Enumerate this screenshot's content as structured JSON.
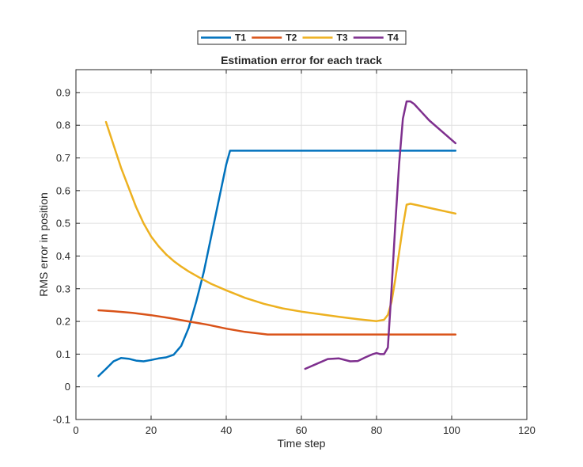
{
  "chart_data": {
    "type": "line",
    "title": "Estimation error for each track",
    "xlabel": "Time step",
    "ylabel": "RMS error in position",
    "xlim": [
      0,
      120
    ],
    "ylim": [
      -0.1,
      0.97
    ],
    "xticks": [
      0,
      20,
      40,
      60,
      80,
      100,
      120
    ],
    "yticks": [
      -0.1,
      0,
      0.1,
      0.2,
      0.3,
      0.4,
      0.5,
      0.6,
      0.7,
      0.8,
      0.9
    ],
    "xtick_labels": [
      "0",
      "20",
      "40",
      "60",
      "80",
      "100",
      "120"
    ],
    "ytick_labels": [
      "-0.1",
      "0",
      "0.1",
      "0.2",
      "0.3",
      "0.4",
      "0.5",
      "0.6",
      "0.7",
      "0.8",
      "0.9"
    ],
    "grid": true,
    "legend_position": "top-center",
    "legend_orientation": "horizontal",
    "series": [
      {
        "name": "T1",
        "color": "#0072BD",
        "x": [
          6,
          8,
          10,
          12,
          14,
          16,
          18,
          20,
          22,
          24,
          26,
          28,
          30,
          32,
          34,
          36,
          38,
          40,
          41,
          101
        ],
        "y": [
          0.033,
          0.055,
          0.078,
          0.088,
          0.086,
          0.08,
          0.078,
          0.082,
          0.087,
          0.09,
          0.098,
          0.125,
          0.18,
          0.26,
          0.35,
          0.46,
          0.57,
          0.68,
          0.722,
          0.722
        ]
      },
      {
        "name": "T2",
        "color": "#D95319",
        "x": [
          6,
          10,
          15,
          20,
          25,
          30,
          35,
          40,
          45,
          51,
          101
        ],
        "y": [
          0.234,
          0.231,
          0.226,
          0.219,
          0.21,
          0.2,
          0.19,
          0.178,
          0.168,
          0.16,
          0.16
        ]
      },
      {
        "name": "T3",
        "color": "#EDB120",
        "x": [
          8,
          10,
          12,
          14,
          16,
          18,
          20,
          22,
          24,
          26,
          28,
          30,
          33,
          36,
          40,
          45,
          50,
          55,
          60,
          65,
          70,
          75,
          80,
          82,
          83,
          84,
          85,
          86,
          87,
          88,
          89,
          91,
          95,
          101
        ],
        "y": [
          0.81,
          0.74,
          0.67,
          0.61,
          0.55,
          0.5,
          0.46,
          0.43,
          0.405,
          0.385,
          0.368,
          0.353,
          0.333,
          0.315,
          0.295,
          0.272,
          0.254,
          0.24,
          0.23,
          0.222,
          0.214,
          0.207,
          0.201,
          0.205,
          0.22,
          0.26,
          0.33,
          0.41,
          0.49,
          0.557,
          0.56,
          0.555,
          0.545,
          0.53
        ]
      },
      {
        "name": "T4",
        "color": "#7E2F8E",
        "x": [
          61,
          64,
          67,
          70,
          73,
          75,
          77,
          79,
          80,
          81,
          82,
          83,
          84,
          85,
          86,
          87,
          88,
          89,
          90,
          92,
          94,
          97,
          101
        ],
        "y": [
          0.055,
          0.07,
          0.085,
          0.087,
          0.078,
          0.079,
          0.09,
          0.1,
          0.103,
          0.1,
          0.1,
          0.12,
          0.3,
          0.5,
          0.68,
          0.82,
          0.873,
          0.873,
          0.865,
          0.84,
          0.815,
          0.785,
          0.745
        ]
      }
    ]
  }
}
